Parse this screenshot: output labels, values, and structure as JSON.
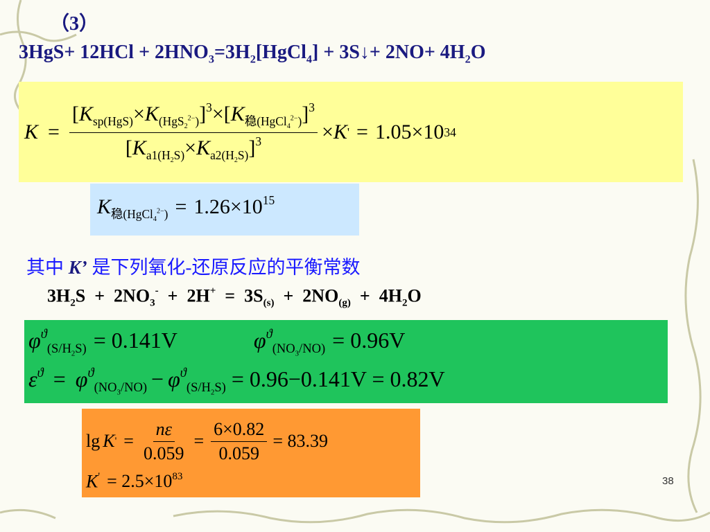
{
  "heading": "（3）",
  "reaction1": [
    "3HgS+ 12HCl + 2HNO",
    "3",
    "=3H",
    "2",
    "[HgCl",
    "4",
    "] + 3S↓+ 2NO+ 4H",
    "2",
    "O"
  ],
  "box1": {
    "lhs": [
      "K",
      "="
    ],
    "num": [
      "[",
      "K",
      "sp(HgS)",
      "×",
      "K",
      "(HgS",
      "2",
      "2−",
      ")",
      "]",
      "3",
      "×[",
      "K",
      "稳(HgCl",
      "4",
      "2−",
      ")",
      "]",
      "3"
    ],
    "den": [
      "[",
      "K",
      "a1(H",
      "2",
      "S)",
      "×",
      "K",
      "a2(H",
      "2",
      "S)",
      "]",
      "3"
    ],
    "rhs": [
      "×",
      "K",
      "'",
      "=",
      "1.05×10",
      "34"
    ]
  },
  "box2": [
    "K",
    "稳(HgCl",
    "4",
    "2−",
    ")",
    "=",
    "1.26×10",
    "15"
  ],
  "intro": [
    "其中",
    "K’",
    "是下列氧化-还原反应的平衡常数"
  ],
  "reaction2": [
    "3H",
    "2",
    "S  +  2NO",
    "3",
    "-",
    "  +  2H",
    "+",
    "  =  3S",
    "(s)",
    "  +  2NO",
    "(g)",
    "  +  4H",
    "2",
    "O"
  ],
  "box3": {
    "line1": [
      "φ",
      "ϑ",
      "(S/H",
      "2",
      "S)",
      "= 0.141V",
      "φ",
      "ϑ",
      "(NO",
      "3",
      "/NO)",
      "= 0.96V"
    ],
    "line2": [
      "ε",
      "ϑ",
      "=",
      "φ",
      "ϑ",
      "(NO",
      "3",
      "/NO)",
      "−",
      "φ",
      "ϑ",
      "(S/H",
      "2",
      "S)",
      "= 0.96−0.141V = 0.82V"
    ]
  },
  "box4": {
    "line1": [
      "lg",
      "K",
      "'",
      "=",
      "nε",
      "0.059",
      "=",
      "6×0.82",
      "0.059",
      "= 83.39"
    ],
    "line2": [
      "K",
      "'",
      "= 2.5×10",
      "83"
    ]
  },
  "page_number": "38"
}
